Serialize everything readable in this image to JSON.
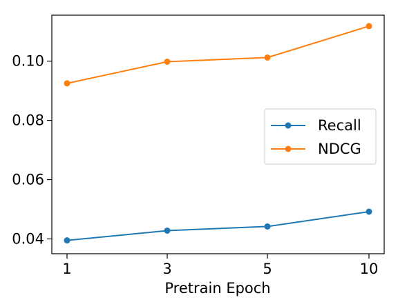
{
  "chart_data": {
    "type": "line",
    "categories": [
      "1",
      "3",
      "5",
      "10"
    ],
    "series": [
      {
        "name": "Recall",
        "values": [
          0.0395,
          0.0428,
          0.0442,
          0.0492
        ],
        "color": "#1f77b4"
      },
      {
        "name": "NDCG",
        "values": [
          0.0925,
          0.0998,
          0.1012,
          0.1118
        ],
        "color": "#ff7f0e"
      }
    ],
    "title": "",
    "xlabel": "Pretrain Epoch",
    "ylabel": "",
    "ylim": [
      0.035,
      0.1155
    ],
    "yticks": [
      0.04,
      0.06,
      0.08,
      0.1
    ],
    "ytick_labels": [
      "0.04",
      "0.06",
      "0.08",
      "0.10"
    ],
    "grid": false,
    "legend_position": "center-right"
  }
}
